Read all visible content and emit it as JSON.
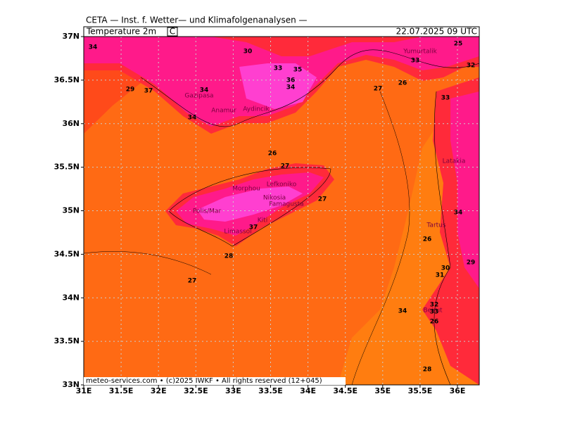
{
  "header": {
    "source": "CETA — Inst. f. Wetter— und Klimafolgenanalysen —",
    "title": "Temperature 2m",
    "unit": "C",
    "valid_time": "22.07.2025 09 UTC"
  },
  "footer": "meteo-services.com • (c)2025 IWKF • All rights reserved (12+045)",
  "axes": {
    "xticks": [
      {
        "value": 31,
        "label": "31E"
      },
      {
        "value": 31.5,
        "label": "31.5E"
      },
      {
        "value": 32,
        "label": "32E"
      },
      {
        "value": 32.5,
        "label": "32.5E"
      },
      {
        "value": 33,
        "label": "33E"
      },
      {
        "value": 33.5,
        "label": "33.5E"
      },
      {
        "value": 34,
        "label": "34E"
      },
      {
        "value": 34.5,
        "label": "34.5E"
      },
      {
        "value": 35,
        "label": "35E"
      },
      {
        "value": 35.5,
        "label": "35.5E"
      },
      {
        "value": 36,
        "label": "36E"
      }
    ],
    "yticks": [
      {
        "value": 33,
        "label": "33N"
      },
      {
        "value": 33.5,
        "label": "33.5N"
      },
      {
        "value": 34,
        "label": "34N"
      },
      {
        "value": 34.5,
        "label": "34.5N"
      },
      {
        "value": 35,
        "label": "35N"
      },
      {
        "value": 35.5,
        "label": "35.5N"
      },
      {
        "value": 36,
        "label": "36N"
      },
      {
        "value": 36.5,
        "label": "36.5N"
      },
      {
        "value": 37,
        "label": "37N"
      }
    ]
  },
  "cities": [
    "Yumurtalik",
    "Gazipasa",
    "Anamur",
    "Aydincik",
    "Latakia",
    "Tartus",
    "Beirut",
    "Morphou",
    "Lefkoniko",
    "Nikosia",
    "Famagusta",
    "Polis/Mar",
    "Kiti",
    "Limassol"
  ],
  "contour_labels": [
    27,
    26,
    27,
    27,
    26,
    30,
    27,
    26,
    34,
    33,
    34,
    29,
    30,
    31,
    32,
    33,
    26,
    34,
    28,
    29,
    37,
    37,
    34,
    33,
    35,
    36,
    34,
    32,
    25,
    28,
    34,
    33
  ]
}
